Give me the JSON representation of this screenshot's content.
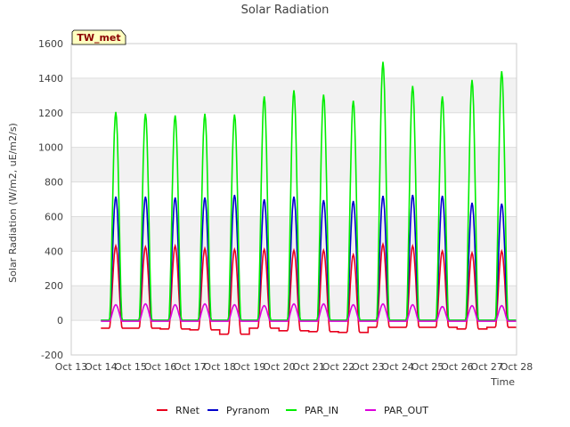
{
  "chart_data": {
    "type": "line",
    "title": "Solar Radiation",
    "xlabel": "Time",
    "ylabel": "Solar Radiation (W/m2, uE/m2/s)",
    "station_badge": "TW_met",
    "ylim": [
      -200,
      1600
    ],
    "yticks": [
      "-200",
      "0",
      "200",
      "400",
      "600",
      "800",
      "1000",
      "1200",
      "1400",
      "1600"
    ],
    "xticks": [
      "Oct 13",
      "Oct 14",
      "Oct 15",
      "Oct 16",
      "Oct 17",
      "Oct 18",
      "Oct 19",
      "Oct 20",
      "Oct 21",
      "Oct 22",
      "Oct 23",
      "Oct 24",
      "Oct 25",
      "Oct 26",
      "Oct 27",
      "Oct 28"
    ],
    "x_range_days": [
      "Oct 13",
      "Oct 28"
    ],
    "day_center_offset": 0.5,
    "daylight_halfwidth_days": 0.21,
    "background_bands": "alternating light grey horizontal bands",
    "legend_placement": "bottom-center",
    "days": [
      "Oct 13",
      "Oct 14",
      "Oct 15",
      "Oct 16",
      "Oct 17",
      "Oct 18",
      "Oct 19",
      "Oct 20",
      "Oct 21",
      "Oct 22",
      "Oct 23",
      "Oct 24",
      "Oct 25",
      "Oct 26",
      "Oct 27"
    ],
    "series": [
      {
        "name": "RNet",
        "color": "#e8001c",
        "daily_peak": [
          null,
          430,
          425,
          430,
          415,
          410,
          410,
          405,
          405,
          380,
          440,
          430,
          400,
          390,
          400
        ],
        "night_value": [
          null,
          -45,
          -45,
          -50,
          -55,
          -80,
          -45,
          -60,
          -65,
          -70,
          -40,
          -40,
          -40,
          -50,
          -40
        ]
      },
      {
        "name": "Pyranom",
        "color": "#0000cc",
        "daily_peak": [
          null,
          715,
          715,
          710,
          710,
          725,
          700,
          715,
          695,
          690,
          720,
          725,
          720,
          680,
          675
        ],
        "night_value": [
          null,
          0,
          0,
          0,
          0,
          0,
          0,
          0,
          0,
          0,
          0,
          0,
          0,
          0,
          0
        ]
      },
      {
        "name": "PAR_IN",
        "color": "#00ee00",
        "daily_peak": [
          null,
          1205,
          1195,
          1185,
          1195,
          1190,
          1295,
          1330,
          1305,
          1270,
          1495,
          1355,
          1295,
          1390,
          1440
        ],
        "night_value": [
          null,
          0,
          0,
          0,
          0,
          0,
          0,
          0,
          0,
          0,
          0,
          0,
          0,
          0,
          0
        ]
      },
      {
        "name": "PAR_OUT",
        "color": "#dd00dd",
        "daily_peak": [
          null,
          90,
          95,
          90,
          95,
          90,
          85,
          95,
          95,
          90,
          95,
          90,
          80,
          85,
          85
        ],
        "night_value": [
          null,
          -5,
          -5,
          -5,
          -5,
          -5,
          -5,
          -5,
          -5,
          -5,
          -5,
          -5,
          -5,
          -5,
          -5
        ]
      }
    ]
  }
}
